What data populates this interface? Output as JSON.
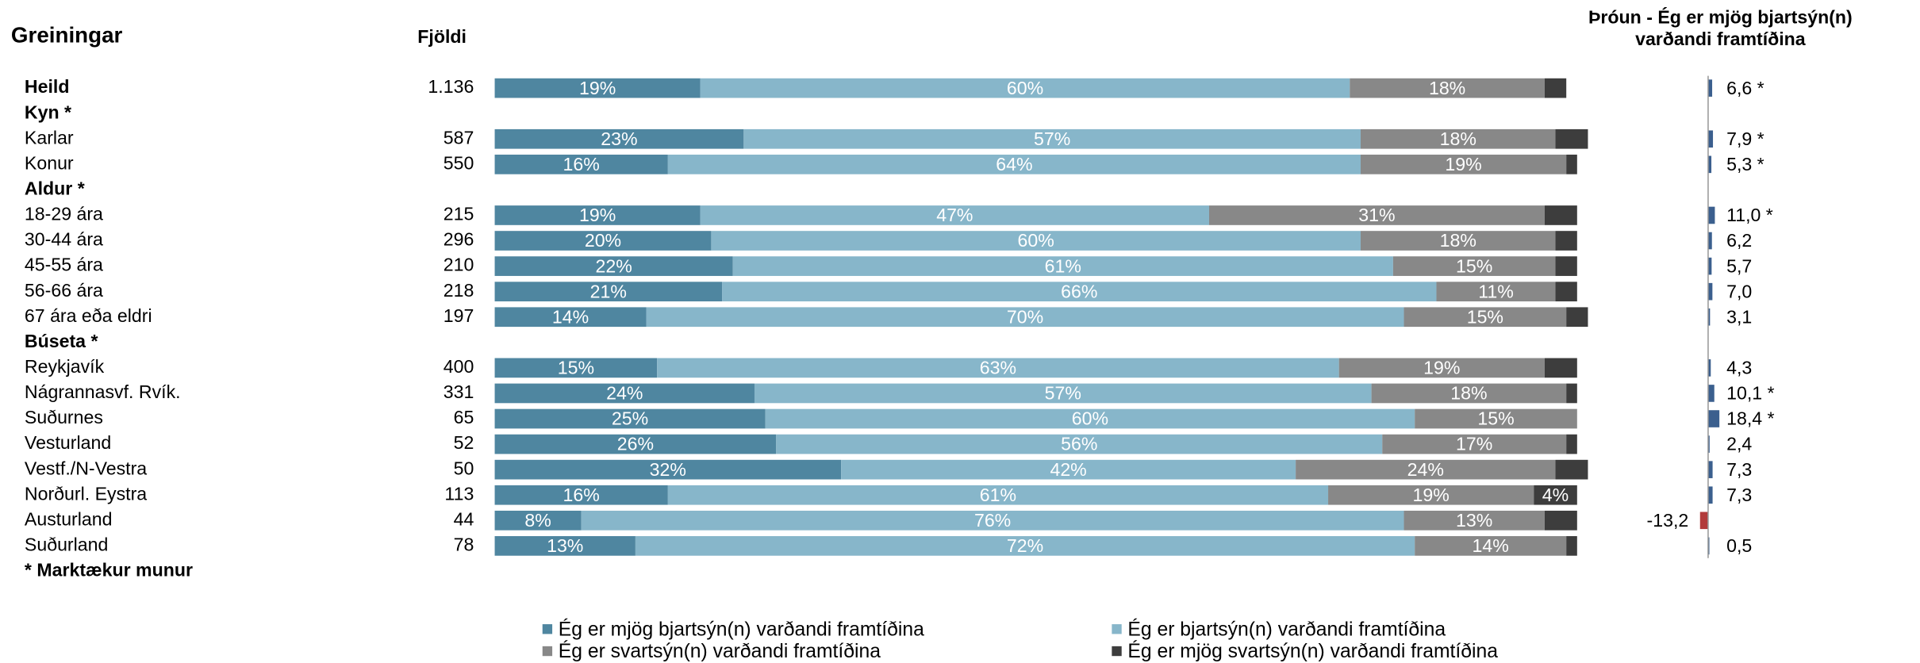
{
  "chart_data": {
    "type": "stacked-bar-horizontal",
    "title": "Greiningar",
    "count_title": "Fjöldi",
    "categories": [
      "Heild",
      "Kyn *",
      "Karlar",
      "Konur",
      "Aldur *",
      "18-29 ára",
      "30-44 ára",
      "45-55 ára",
      "56-66 ára",
      "67 ára eða eldri",
      "Búseta *",
      "Reykjavík",
      "Nágrannasvf. Rvík.",
      "Suðurnes",
      "Vesturland",
      "Vestf./N-Vestra",
      "Norðurl. Eystra",
      "Austurland",
      "Suðurland"
    ],
    "bold": [
      true,
      true,
      false,
      false,
      true,
      false,
      false,
      false,
      false,
      false,
      true,
      false,
      false,
      false,
      false,
      false,
      false,
      false,
      false
    ],
    "counts": [
      {
        "value": 1136,
        "label": "1.136"
      },
      null,
      587,
      550,
      null,
      215,
      296,
      210,
      218,
      197,
      null,
      400,
      331,
      65,
      52,
      50,
      113,
      44,
      78
    ],
    "xlim": [
      0,
      100
    ],
    "series": [
      {
        "name": "Ég er mjög bjartsýn(n) varðandi framtíðina",
        "color": "#4f86a0",
        "values": [
          19,
          null,
          23,
          16,
          null,
          19,
          20,
          22,
          21,
          14,
          null,
          15,
          24,
          25,
          26,
          32,
          16,
          8,
          13
        ],
        "value_labels": [
          "19%",
          null,
          "23%",
          "16%",
          null,
          "19%",
          "20%",
          "22%",
          "21%",
          "14%",
          null,
          "15%",
          "24%",
          "25%",
          "26%",
          "32%",
          "16%",
          "8%",
          "13%"
        ]
      },
      {
        "name": "Ég er bjartsýn(n) varðandi framtíðina",
        "color": "#87b6ca",
        "values": [
          60,
          null,
          57,
          64,
          null,
          47,
          60,
          61,
          66,
          70,
          null,
          63,
          57,
          60,
          56,
          42,
          61,
          76,
          72
        ],
        "value_labels": [
          "60%",
          null,
          "57%",
          "64%",
          null,
          "47%",
          "60%",
          "61%",
          "66%",
          "70%",
          null,
          "63%",
          "57%",
          "60%",
          "56%",
          "42%",
          "61%",
          "76%",
          "72%"
        ]
      },
      {
        "name": "Ég er svartsýn(n) varðandi framtíðina",
        "color": "#888888",
        "values": [
          18,
          null,
          18,
          19,
          null,
          31,
          18,
          15,
          11,
          15,
          null,
          19,
          18,
          15,
          17,
          24,
          19,
          13,
          14
        ],
        "value_labels": [
          "18%",
          null,
          "18%",
          "19%",
          null,
          "31%",
          "18%",
          "15%",
          "11%",
          "15%",
          null,
          "19%",
          "18%",
          "15%",
          "17%",
          "24%",
          "19%",
          "13%",
          "14%"
        ]
      },
      {
        "name": "Ég er mjög svartsýn(n) varðandi framtíðina",
        "color": "#3d3d3d",
        "values": [
          2,
          null,
          3,
          1,
          null,
          3,
          2,
          2,
          2,
          2,
          null,
          3,
          1,
          0,
          1,
          3,
          4,
          3,
          1
        ],
        "value_labels": [
          null,
          null,
          null,
          null,
          null,
          null,
          null,
          null,
          null,
          null,
          null,
          null,
          null,
          null,
          null,
          null,
          "4%",
          null,
          null
        ]
      }
    ],
    "trend": {
      "title": [
        "Þróun - Ég er mjög bjartsýn(n)",
        "varðandi framtíðina"
      ],
      "positive_color": "#3b5f8e",
      "negative_color": "#b23b3b",
      "values": [
        6.6,
        null,
        7.9,
        5.3,
        null,
        11.0,
        6.2,
        5.7,
        7.0,
        3.1,
        null,
        4.3,
        10.1,
        18.4,
        2.4,
        7.3,
        7.3,
        -13.2,
        0.5
      ],
      "value_labels": [
        "6,6 *",
        null,
        "7,9 *",
        "5,3 *",
        null,
        "11,0 *",
        "6,2",
        "5,7",
        "7,0",
        "3,1",
        null,
        "4,3",
        "10,1 *",
        "18,4 *",
        "2,4",
        "7,3",
        "7,3",
        "-13,2",
        "0,5"
      ]
    },
    "footnote": "* Marktækur munur"
  }
}
